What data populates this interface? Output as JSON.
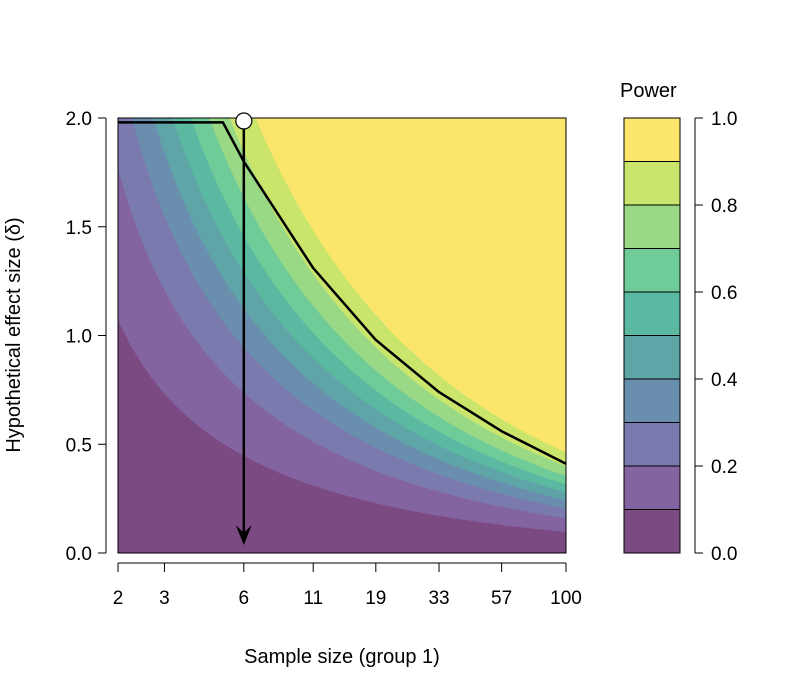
{
  "chart_data": {
    "type": "heatmap",
    "title": "",
    "xlabel": "Sample size (group 1)",
    "ylabel": "Hypothetical effect size (δ)",
    "x_scale": "log",
    "xlim": [
      2,
      100
    ],
    "ylim": [
      0,
      2
    ],
    "x_ticks": [
      2,
      3,
      6,
      11,
      19,
      33,
      57,
      100
    ],
    "y_ticks": [
      "0.0",
      "0.5",
      "1.0",
      "1.5",
      "2.0"
    ],
    "contour_levels": [
      0.1,
      0.2,
      0.3,
      0.4,
      0.5,
      0.6,
      0.7,
      0.8,
      0.9
    ],
    "highlighted_contour": {
      "power": 0.8,
      "points": [
        [
          2,
          1.98
        ],
        [
          5,
          1.98
        ],
        [
          6,
          1.8
        ],
        [
          11,
          1.31
        ],
        [
          19,
          0.98
        ],
        [
          33,
          0.74
        ],
        [
          57,
          0.56
        ],
        [
          100,
          0.41
        ]
      ]
    },
    "selected_point": {
      "x": 6,
      "y": 2.0
    },
    "drop_line": {
      "x": 6,
      "from_y": 2.0,
      "to_y": 0.0
    },
    "legend": {
      "title": "Power",
      "position": "right",
      "ticks": [
        "0.0",
        "0.2",
        "0.4",
        "0.6",
        "0.8",
        "1.0"
      ],
      "bins": [
        0,
        0.1,
        0.2,
        0.3,
        0.4,
        0.5,
        0.6,
        0.7,
        0.8,
        0.9,
        1.0
      ],
      "colors": [
        "#7b4a83",
        "#8464a0",
        "#7a7aae",
        "#6a8fae",
        "#5fa5a7",
        "#5bb9a1",
        "#6fcb97",
        "#99d985",
        "#c9e56c",
        "#fbe56b"
      ]
    }
  }
}
